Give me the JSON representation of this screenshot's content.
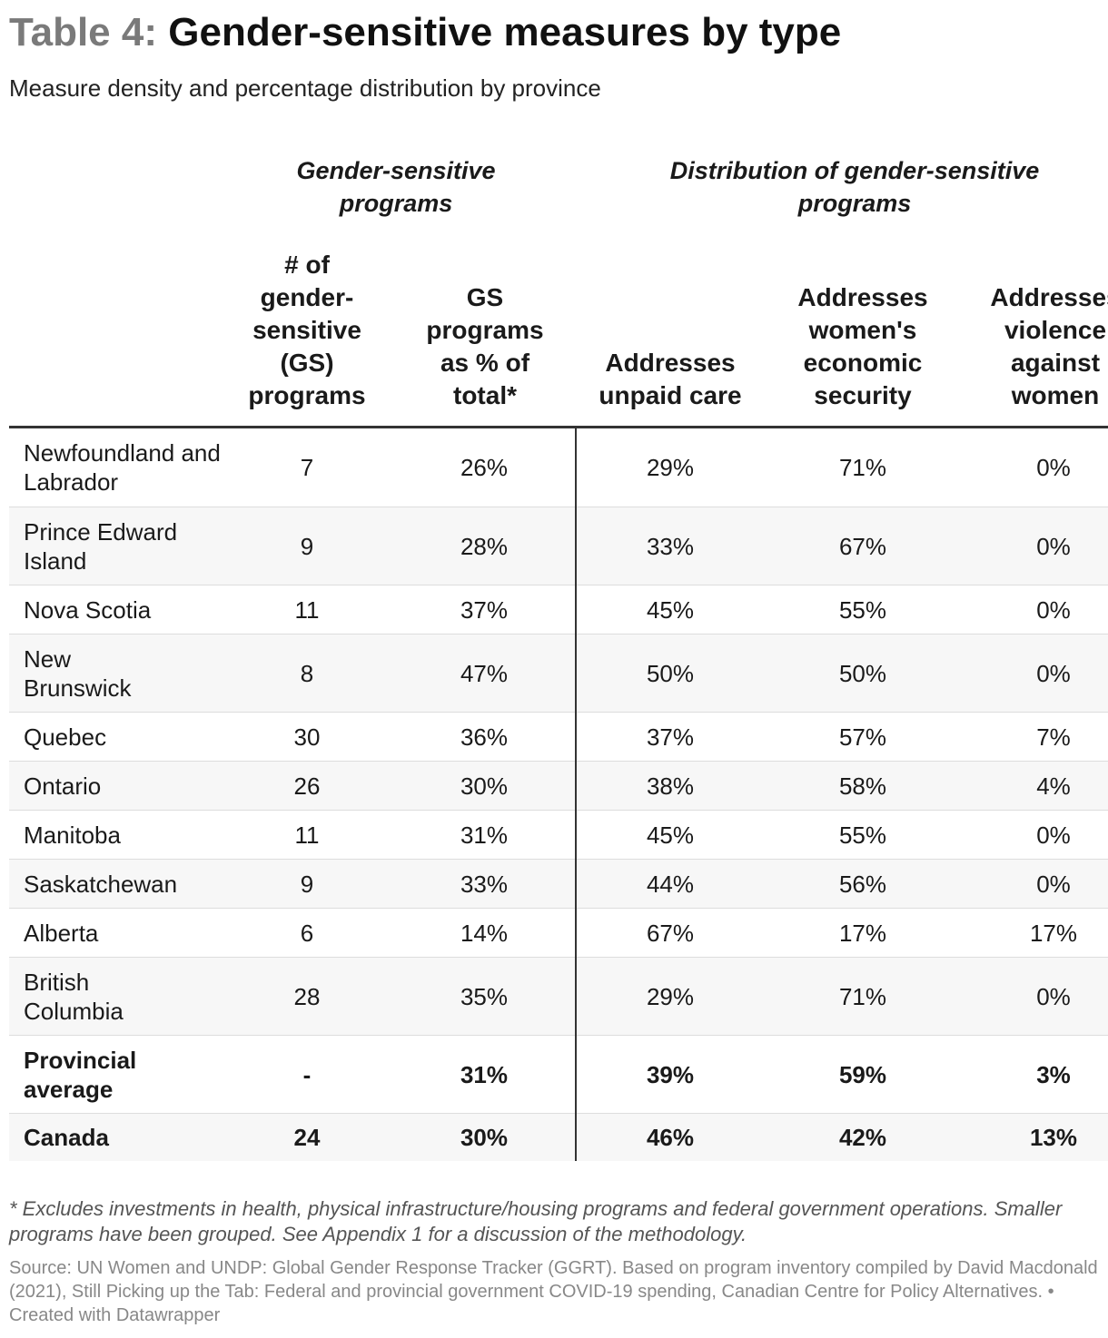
{
  "title": {
    "prefix": "Table 4:",
    "main": "Gender-sensitive measures by type"
  },
  "subtitle": "Measure density and percentage distribution by province",
  "groups": {
    "gs_programs": "Gender-sensitive programs",
    "distribution": "Distribution of gender-sensitive programs"
  },
  "columns": {
    "count": "# of gender-sensitive (GS) programs",
    "pct_total": "GS programs as % of total*",
    "unpaid_care": "Addresses unpaid care",
    "economic_security": "Addresses women's economic security",
    "violence": "Addresses violence against women"
  },
  "rows": [
    {
      "name": "Newfoundland and Labrador",
      "count": "7",
      "pct_total": "26%",
      "unpaid_care": "29%",
      "economic_security": "71%",
      "violence": "0%"
    },
    {
      "name": "Prince Edward Island",
      "count": "9",
      "pct_total": "28%",
      "unpaid_care": "33%",
      "economic_security": "67%",
      "violence": "0%"
    },
    {
      "name": "Nova Scotia",
      "count": "11",
      "pct_total": "37%",
      "unpaid_care": "45%",
      "economic_security": "55%",
      "violence": "0%"
    },
    {
      "name": "New Brunswick",
      "count": "8",
      "pct_total": "47%",
      "unpaid_care": "50%",
      "economic_security": "50%",
      "violence": "0%"
    },
    {
      "name": "Quebec",
      "count": "30",
      "pct_total": "36%",
      "unpaid_care": "37%",
      "economic_security": "57%",
      "violence": "7%"
    },
    {
      "name": "Ontario",
      "count": "26",
      "pct_total": "30%",
      "unpaid_care": "38%",
      "economic_security": "58%",
      "violence": "4%"
    },
    {
      "name": "Manitoba",
      "count": "11",
      "pct_total": "31%",
      "unpaid_care": "45%",
      "economic_security": "55%",
      "violence": "0%"
    },
    {
      "name": "Saskatchewan",
      "count": "9",
      "pct_total": "33%",
      "unpaid_care": "44%",
      "economic_security": "56%",
      "violence": "0%"
    },
    {
      "name": "Alberta",
      "count": "6",
      "pct_total": "14%",
      "unpaid_care": "67%",
      "economic_security": "17%",
      "violence": "17%"
    },
    {
      "name": "British Columbia",
      "count": "28",
      "pct_total": "35%",
      "unpaid_care": "29%",
      "economic_security": "71%",
      "violence": "0%"
    },
    {
      "name": "Provincial average",
      "count": "-",
      "pct_total": "31%",
      "unpaid_care": "39%",
      "economic_security": "59%",
      "violence": "3%"
    },
    {
      "name": "Canada",
      "count": "24",
      "pct_total": "30%",
      "unpaid_care": "46%",
      "economic_security": "42%",
      "violence": "13%"
    }
  ],
  "footnote": "* Excludes investments in health, physical infrastructure/housing programs and federal government operations. Smaller programs have been grouped. See Appendix 1 for a discussion of the methodology.",
  "source": "Source: UN Women and UNDP: Global Gender Response Tracker (GGRT). Based on program inventory compiled by David Macdonald (2021), Still Picking up the Tab: Federal and provincial government COVID-19 spending, Canadian Centre for Policy Alternatives. • Created with Datawrapper"
}
